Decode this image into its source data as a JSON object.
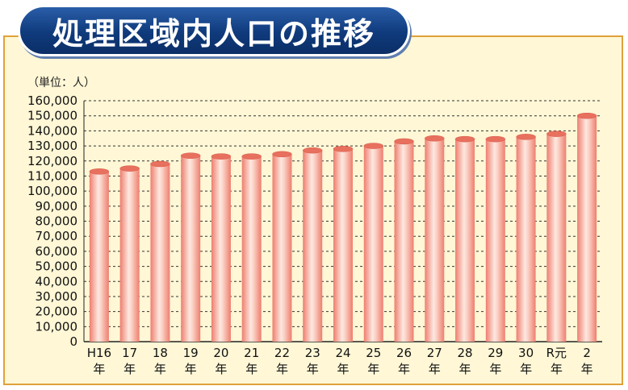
{
  "title": "処理区域内人口の推移",
  "unit_label": "（単位：人）",
  "colors": {
    "bar_edge": "#f08878",
    "bar_center": "#fde8e0",
    "panel": "#fff7d6",
    "title_bg": "#0f3a7c"
  },
  "chart_data": {
    "type": "bar",
    "title": "処理区域内人口の推移",
    "ylabel": "（単位：人）",
    "xlabel": "",
    "ylim": [
      0,
      160000
    ],
    "grid": true,
    "y_ticks": [
      "160,000",
      "150,000",
      "140,000",
      "130,000",
      "120,000",
      "110,000",
      "100,000",
      "90,000",
      "80,000",
      "70,000",
      "60,000",
      "50,000",
      "40,000",
      "30,000",
      "20,000",
      "10,000",
      "0"
    ],
    "categories": [
      [
        "H16",
        "年"
      ],
      [
        "17",
        "年"
      ],
      [
        "18",
        "年"
      ],
      [
        "19",
        "年"
      ],
      [
        "20",
        "年"
      ],
      [
        "21",
        "年"
      ],
      [
        "22",
        "年"
      ],
      [
        "23",
        "年"
      ],
      [
        "24",
        "年"
      ],
      [
        "25",
        "年"
      ],
      [
        "26",
        "年"
      ],
      [
        "27",
        "年"
      ],
      [
        "28",
        "年"
      ],
      [
        "29",
        "年"
      ],
      [
        "30",
        "年"
      ],
      [
        "R元",
        "年"
      ],
      [
        "2",
        "年"
      ]
    ],
    "values": [
      113000,
      115000,
      118000,
      123500,
      123000,
      123000,
      124500,
      127000,
      128000,
      130000,
      133000,
      135000,
      134500,
      134500,
      136000,
      138000,
      150000
    ]
  }
}
